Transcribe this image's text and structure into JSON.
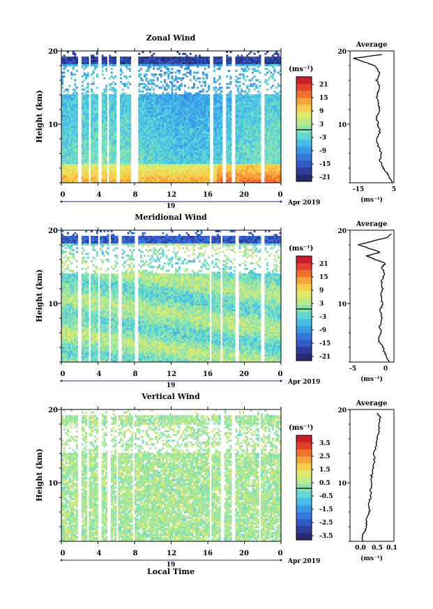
{
  "figure": {
    "x_axis_title": "Local Time",
    "date_label": "Apr 2019",
    "day_label": "19",
    "x_ticks": [
      "0",
      "4",
      "8",
      "12",
      "16",
      "20",
      "0"
    ],
    "y_ticks": [
      "20",
      "10"
    ],
    "y_axis_title": "Height (km)",
    "unit_label": "(ms⁻¹)",
    "avg_title": "Average",
    "avg_xlabel": "(ms⁻¹)"
  },
  "colors": {
    "colorbar": [
      "#262a6e",
      "#2f3d9c",
      "#3458c6",
      "#3578dd",
      "#3a9ae6",
      "#45bde6",
      "#63d6d2",
      "#8de3ac",
      "#bde98a",
      "#e2e868",
      "#f6d04c",
      "#f9a33b",
      "#f0702c",
      "#e1422a",
      "#c81e2a"
    ],
    "line": "#000000",
    "zero_contour": "#000000"
  },
  "chart_data": [
    {
      "type": "heatmap",
      "title": "Zonal Wind",
      "x_range": [
        0,
        24
      ],
      "y_range": [
        2,
        20
      ],
      "colorbar_range": [
        -24,
        24
      ],
      "colorbar_ticks": [
        "21",
        "15",
        "9",
        "3",
        "-3",
        "-9",
        "-15",
        "-21"
      ],
      "profile": {
        "title": "Average",
        "x_ticks": [
          "-15",
          "5"
        ],
        "x_range": [
          -20,
          5
        ],
        "heights_km": [
          2,
          3,
          4,
          5,
          6,
          7,
          8,
          9,
          10,
          11,
          12,
          13,
          14,
          15,
          16,
          17,
          18,
          18.5,
          19,
          19.5
        ],
        "values": [
          4,
          2,
          -1,
          -3,
          -2,
          -4,
          -5,
          -3,
          -4,
          -5,
          -3,
          -4,
          -5,
          -3,
          -5,
          -3,
          -6,
          -12,
          -18,
          -2
        ]
      }
    },
    {
      "type": "heatmap",
      "title": "Meridional Wind",
      "x_range": [
        0,
        24
      ],
      "y_range": [
        2,
        20
      ],
      "colorbar_range": [
        -24,
        24
      ],
      "colorbar_ticks": [
        "21",
        "15",
        "9",
        "3",
        "-3",
        "-9",
        "-15",
        "-21"
      ],
      "profile": {
        "title": "Average",
        "x_ticks": [
          "-5",
          "0"
        ],
        "x_range": [
          -6,
          2
        ],
        "heights_km": [
          2,
          3,
          4,
          5,
          6,
          7,
          8,
          9,
          10,
          11,
          12,
          13,
          14,
          15,
          15.5,
          16,
          16.5,
          17,
          18,
          18.5,
          19,
          19.5
        ],
        "values": [
          1,
          0.5,
          0,
          -0.8,
          -0.3,
          -0.6,
          -0.2,
          -0.5,
          -0.1,
          -0.4,
          0,
          -0.3,
          0.2,
          -0.2,
          0.5,
          -1.5,
          -3,
          -0.5,
          -4.5,
          -2,
          0.8,
          1.5
        ]
      }
    },
    {
      "type": "heatmap",
      "title": "Vertical Wind",
      "x_range": [
        0,
        24
      ],
      "y_range": [
        2,
        20
      ],
      "colorbar_range": [
        -4,
        4
      ],
      "colorbar_ticks": [
        "3.5",
        "2.5",
        "1.5",
        "0.5",
        "-0.5",
        "-1.5",
        "-2.5",
        "-3.5"
      ],
      "profile": {
        "title": "Average",
        "x_ticks": [
          "0.0",
          "0.5",
          "0.1"
        ],
        "x_range": [
          -0.05,
          0.13
        ],
        "heights_km": [
          2,
          3,
          4,
          5,
          6,
          7,
          8,
          9,
          10,
          11,
          12,
          13,
          14,
          15,
          16,
          17,
          18,
          19,
          19.5
        ],
        "values": [
          0.0,
          0.005,
          0.02,
          0.015,
          0.03,
          0.028,
          0.033,
          0.035,
          0.04,
          0.038,
          0.045,
          0.05,
          0.048,
          0.055,
          0.06,
          0.07,
          0.065,
          0.075,
          0.06
        ]
      }
    }
  ]
}
